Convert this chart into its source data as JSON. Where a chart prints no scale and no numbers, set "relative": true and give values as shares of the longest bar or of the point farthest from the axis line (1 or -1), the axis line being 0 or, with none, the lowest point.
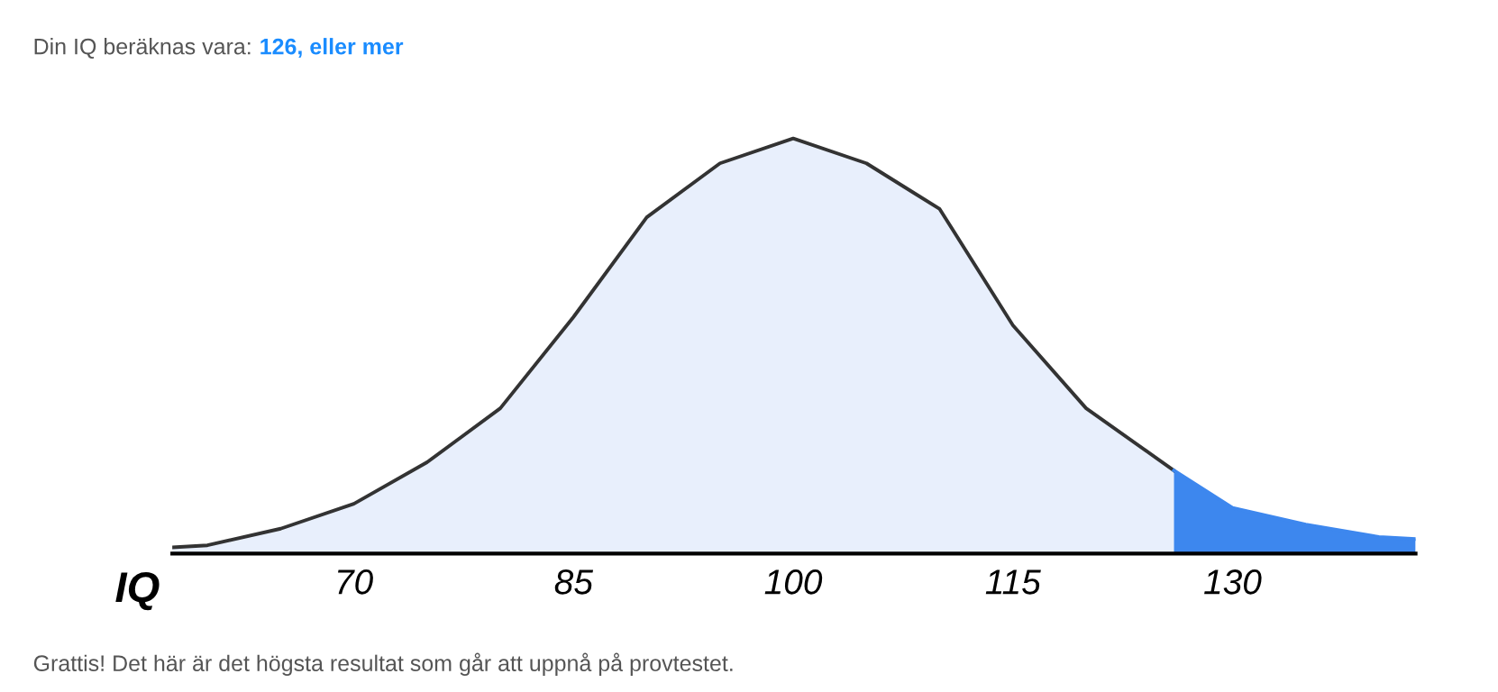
{
  "chart_data": {
    "type": "area",
    "title": "Din IQ beräknas vara:",
    "subtitle": "126, eller mer",
    "xlabel": "IQ",
    "relative": true,
    "annotations": [
      "Grattis! Det här är det högsta resultat som går att uppnå på provtestet."
    ],
    "xlim": [
      57.6,
      142.5
    ],
    "xticks": [
      70,
      85,
      100,
      115,
      130
    ],
    "grid": false,
    "legend": false,
    "series": [
      {
        "color": "#e8effc",
        "x": [
          57.6,
          60,
          65,
          70,
          75,
          80,
          85,
          90,
          95,
          100,
          105,
          110,
          115,
          120,
          126
        ],
        "values": [
          0.015,
          0.02,
          0.06,
          0.12,
          0.22,
          0.35,
          0.57,
          0.81,
          0.94,
          1.0,
          0.94,
          0.83,
          0.55,
          0.35,
          0.2
        ]
      },
      {
        "color": "#3d87ee",
        "x": [
          126,
          130,
          135,
          140,
          142.5
        ],
        "values": [
          0.2,
          0.11,
          0.07,
          0.04,
          0.035
        ]
      }
    ]
  }
}
